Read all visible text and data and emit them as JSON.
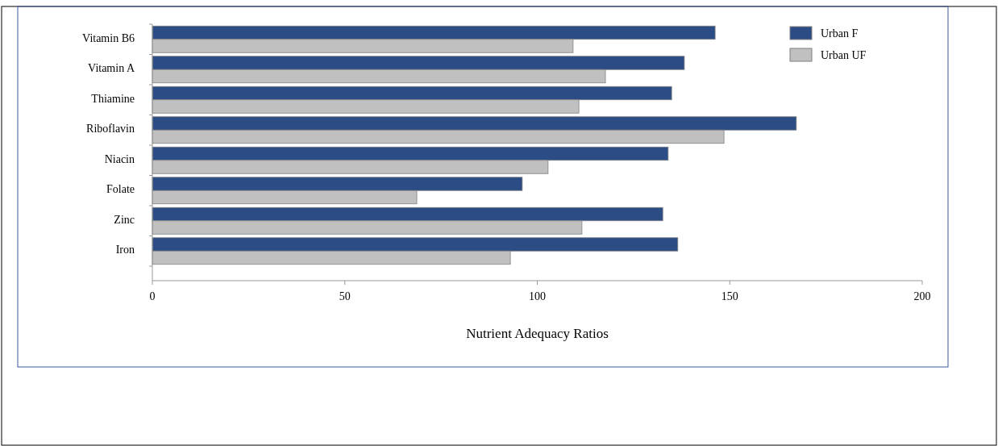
{
  "chart_data": {
    "type": "bar",
    "orientation": "horizontal",
    "xlabel": "Nutrient Adequacy Ratios",
    "categories": [
      "Vitamin B6",
      "Vitamin A",
      "Thiamine",
      "Riboflavin",
      "Niacin",
      "Folate",
      "Zinc",
      "Iron"
    ],
    "series": [
      {
        "name": "Urban F",
        "color": "#2b4c85",
        "values": [
          146.2,
          138.2,
          134.9,
          167.3,
          134.0,
          96.1,
          132.6,
          136.5
        ]
      },
      {
        "name": "Urban UF",
        "color": "#c0c0c0",
        "values": [
          109.3,
          117.7,
          110.8,
          148.5,
          102.8,
          68.7,
          111.6,
          93.0
        ]
      }
    ],
    "xlim": [
      0,
      200
    ],
    "xticks": [
      0,
      50,
      100,
      150,
      200
    ],
    "grid": false,
    "legend": "top right"
  }
}
